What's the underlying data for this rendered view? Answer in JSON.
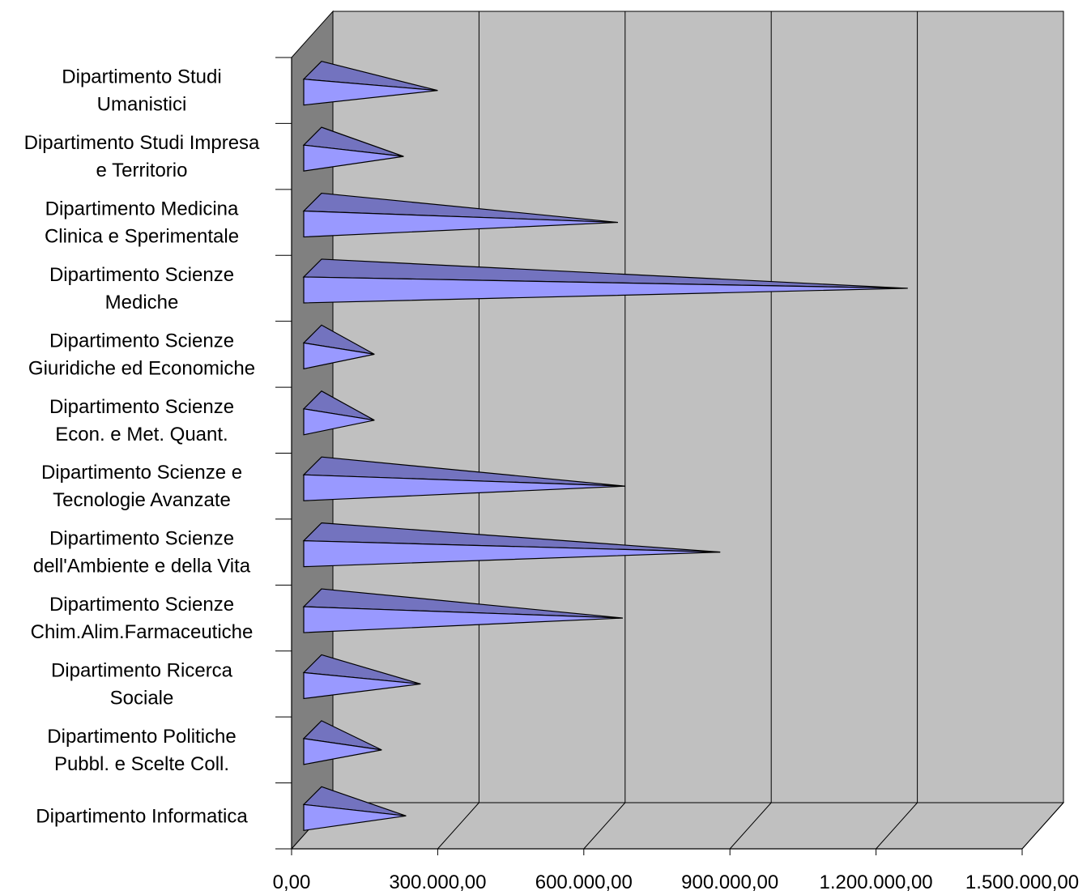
{
  "chart_data": {
    "type": "bar",
    "orientation": "horizontal",
    "style": "3d-pyramid",
    "title": "",
    "xlabel": "",
    "ylabel": "",
    "xlim": [
      0,
      1500000
    ],
    "grid": true,
    "legend": "none",
    "tick_values": [
      0,
      300000,
      600000,
      900000,
      1200000,
      1500000
    ],
    "tick_labels": [
      "0,00",
      "300.000,00",
      "600.000,00",
      "900.000,00",
      "1.200.000,00",
      "1.500.000,00"
    ],
    "categories": [
      [
        "Dipartimento Studi",
        "Umanistici"
      ],
      [
        "Dipartimento Studi Impresa",
        "e Territorio"
      ],
      [
        "Dipartimento Medicina",
        "Clinica e Sperimentale"
      ],
      [
        "Dipartimento Scienze",
        "Mediche"
      ],
      [
        "Dipartimento Scienze",
        "Giuridiche ed Economiche"
      ],
      [
        "Dipartimento Scienze",
        "Econ. e Met. Quant."
      ],
      [
        "Dipartimento Scienze e",
        "Tecnologie Avanzate"
      ],
      [
        "Dipartimento Scienze",
        "dell'Ambiente e della Vita"
      ],
      [
        "Dipartimento Scienze",
        "Chim.Alim.Farmaceutiche"
      ],
      [
        "Dipartimento Ricerca",
        "Sociale"
      ],
      [
        "Dipartimento Politiche",
        "Pubbl. e Scelte Coll."
      ],
      [
        "Dipartimento Informatica"
      ]
    ],
    "values": [
      300000,
      230000,
      670000,
      1265000,
      170000,
      170000,
      685000,
      880000,
      680000,
      265000,
      185000,
      235000
    ],
    "colors": {
      "wall_back": "#c0c0c0",
      "wall_side": "#808080",
      "floor": "#c0c0c0",
      "bar_front": "#9999ff",
      "bar_top": "#7373bf"
    }
  }
}
